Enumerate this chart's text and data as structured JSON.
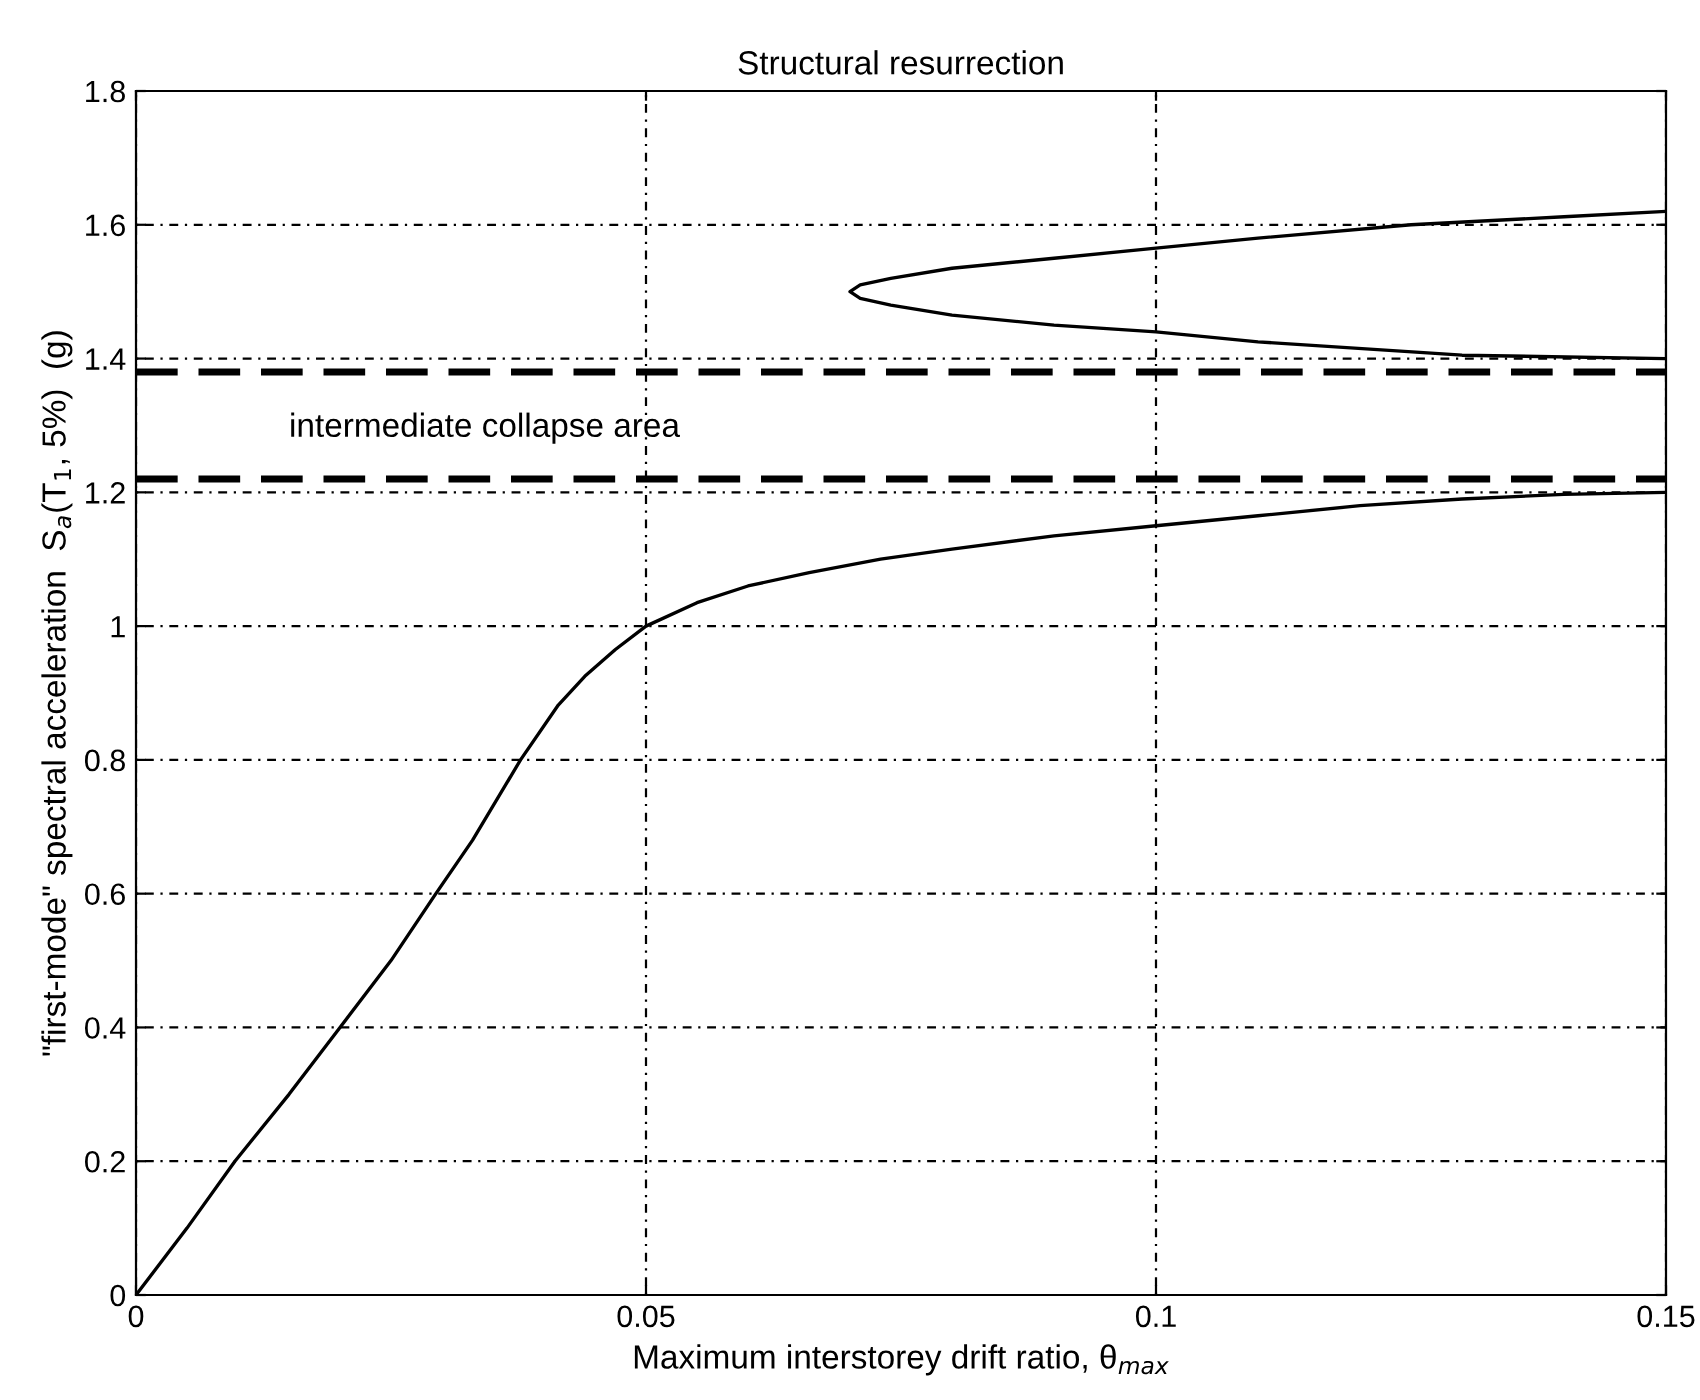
{
  "chart_data": {
    "type": "line",
    "title": "Structural resurrection",
    "xlabel": "Maximum interstorey drift ratio, θ$_{max}$",
    "ylabel": "\"first-mode\" spectral acceleration  S$_{a}$(T$_{1}$, 5%)  (g)",
    "series": [
      {
        "color": "#000000",
        "x": [
          0,
          0.005,
          0.0097,
          0.015,
          0.02,
          0.025,
          0.0294,
          0.033,
          0.0377,
          0.0414,
          0.044,
          0.047,
          0.05,
          0.055,
          0.06,
          0.066,
          0.073,
          0.08,
          0.09,
          0.1,
          0.11,
          0.12,
          0.13,
          0.14,
          0.15
        ],
        "values": [
          0,
          0.1,
          0.2,
          0.3,
          0.4,
          0.5,
          0.6,
          0.68,
          0.8,
          0.882,
          0.925,
          0.965,
          1.0,
          1.035,
          1.06,
          1.08,
          1.1,
          1.115,
          1.135,
          1.15,
          1.165,
          1.18,
          1.19,
          1.197,
          1.2
        ]
      },
      {
        "color": "#000000",
        "x": [
          0.15,
          0.13,
          0.11,
          0.1,
          0.09,
          0.08,
          0.074,
          0.071,
          0.07,
          0.071,
          0.074,
          0.08,
          0.09,
          0.1,
          0.11,
          0.125,
          0.14,
          0.15
        ],
        "values": [
          1.4,
          1.405,
          1.425,
          1.44,
          1.45,
          1.465,
          1.48,
          1.49,
          1.5,
          1.51,
          1.52,
          1.535,
          1.55,
          1.565,
          1.58,
          1.6,
          1.612,
          1.62
        ]
      }
    ],
    "ref_lines": [
      {
        "axis": "y",
        "value": 1.38,
        "color": "#000000",
        "line_style": "dashed"
      },
      {
        "axis": "y",
        "value": 1.22,
        "color": "#000000",
        "line_style": "dashed"
      }
    ],
    "annotations": [
      "intermediate collapse area"
    ],
    "xlim": [
      0,
      0.15
    ],
    "ylim": [
      0,
      1.8
    ],
    "xticks": [
      0,
      0.05,
      0.1,
      0.15
    ],
    "yticks": [
      0,
      0.2,
      0.4,
      0.6,
      0.8,
      1,
      1.2,
      1.4,
      1.6,
      1.8
    ],
    "grid": true,
    "line_style": "solid",
    "marker": "none"
  }
}
